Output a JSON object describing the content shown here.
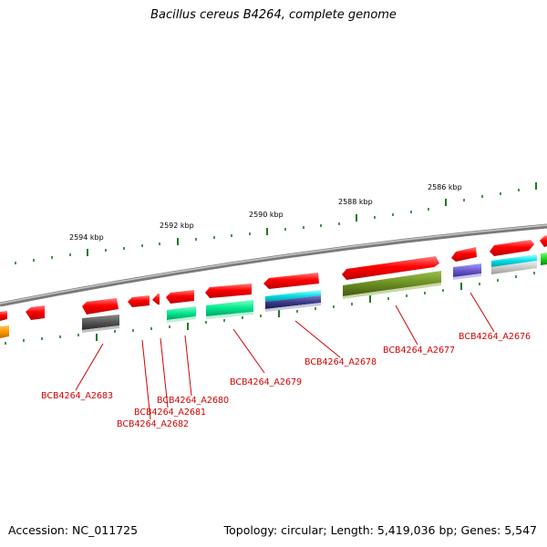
{
  "title": "Bacillus cereus B4264, complete genome",
  "footer": {
    "accession": "Accession: NC_011725",
    "topology": "Topology: circular; Length: 5,419,036 bp; Genes: 5,547"
  },
  "colors": {
    "backbone": "#8c8c8c",
    "tick": "#1f7a1f",
    "label": "#d40000"
  },
  "scale_labels": [
    "2594 kbp",
    "2592 kbp",
    "2590 kbp",
    "2588 kbp",
    "2586 kbp"
  ],
  "gene_labels": [
    "BCB4264_A2683",
    "BCB4264_A2682",
    "BCB4264_A2681",
    "BCB4264_A2680",
    "BCB4264_A2679",
    "BCB4264_A2678",
    "BCB4264_A2677",
    "BCB4264_A2676"
  ]
}
